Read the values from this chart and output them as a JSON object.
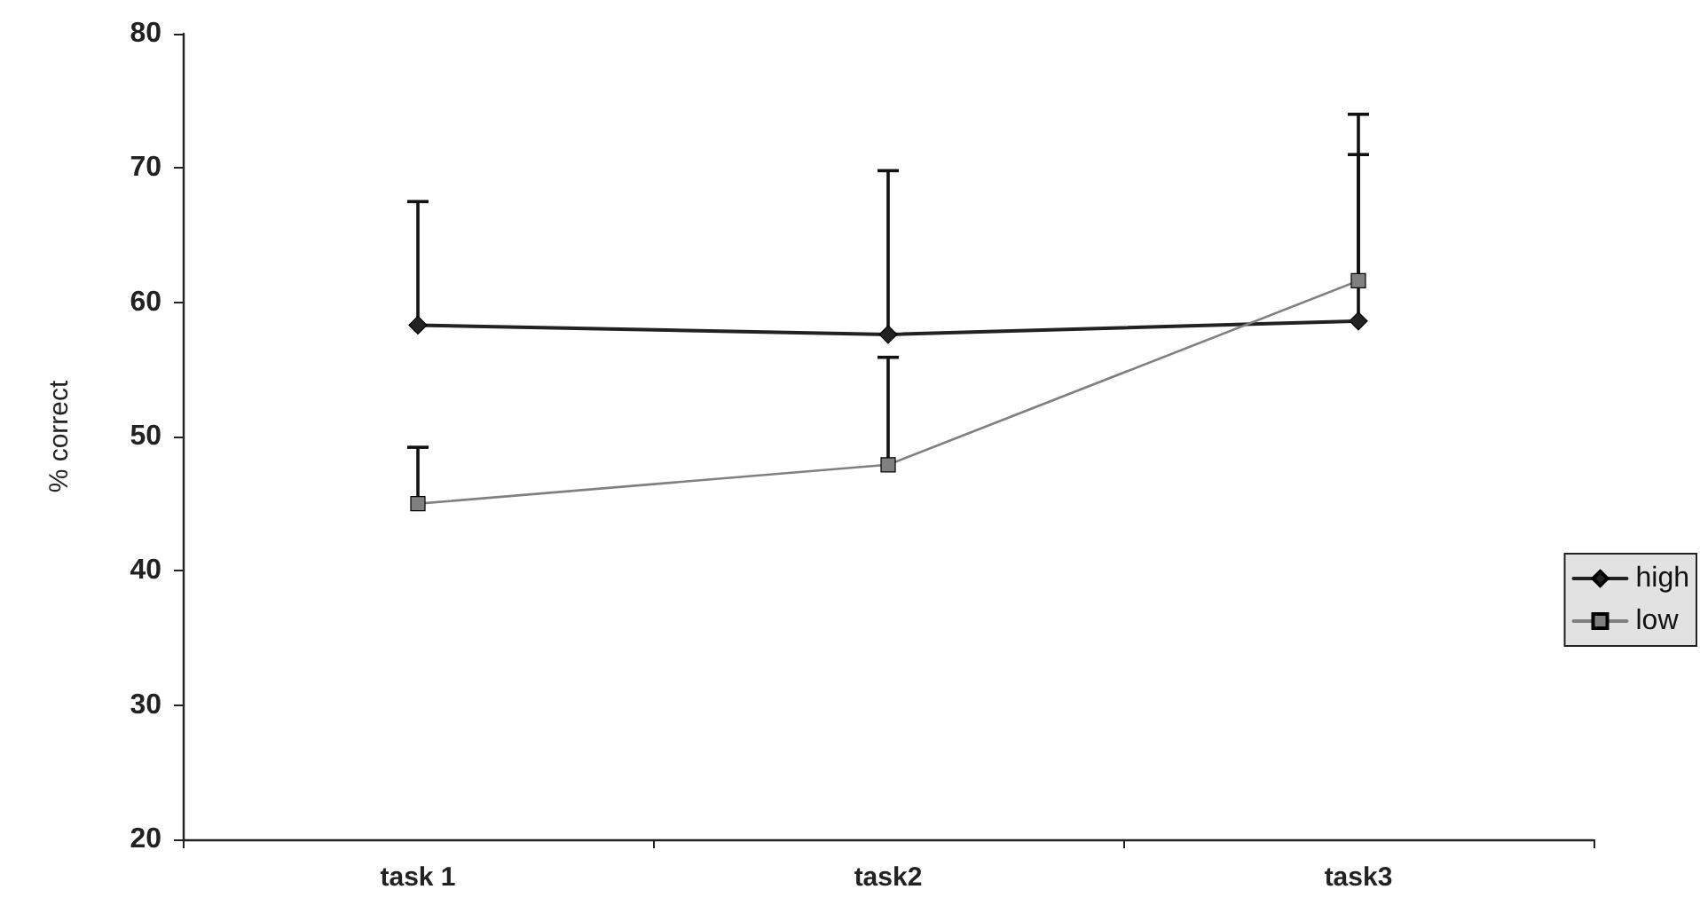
{
  "chart_data": {
    "type": "line",
    "ylabel": "% correct",
    "categories": [
      "task 1",
      "task2",
      "task3"
    ],
    "series": [
      {
        "name": "high",
        "color": "#222222",
        "marker": "diamond",
        "values": [
          58.3,
          57.6,
          58.6
        ],
        "errors": [
          [
            58.3,
            67.5
          ],
          [
            57.6,
            69.8
          ],
          [
            58.6,
            71.0
          ]
        ]
      },
      {
        "name": "low",
        "color": "#808080",
        "marker": "square",
        "values": [
          45.0,
          47.9,
          61.6
        ],
        "errors": [
          [
            45.0,
            49.2
          ],
          [
            47.9,
            55.9
          ],
          [
            61.6,
            74.0
          ]
        ]
      }
    ],
    "ylim": [
      20,
      80
    ],
    "yticks": [
      20,
      30,
      40,
      50,
      60,
      70,
      80
    ],
    "grid": false,
    "legend": "right"
  }
}
